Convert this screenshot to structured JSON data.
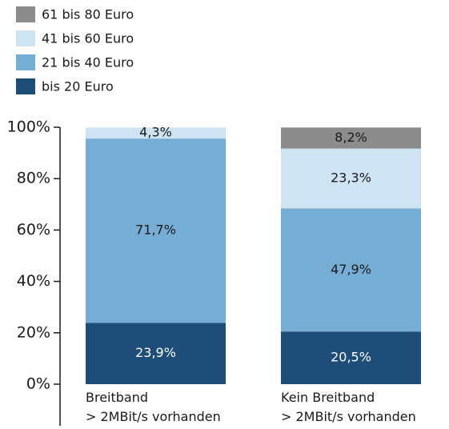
{
  "chart_data": {
    "type": "stacked-bar",
    "categories": [
      "Breitband\n> 2MBit/s vorhanden",
      "Kein Breitband\n> 2MBit/s vorhanden"
    ],
    "series": [
      {
        "name": "bis 20 Euro",
        "color": "#1f4d7a",
        "values": [
          23.9,
          20.5
        ],
        "value_labels": [
          "23,9%",
          "20,5%"
        ]
      },
      {
        "name": "21 bis 40 Euro",
        "color": "#75add4",
        "values": [
          71.7,
          47.9
        ],
        "value_labels": [
          "71,7%",
          "47,9%"
        ]
      },
      {
        "name": "41 bis 60 Euro",
        "color": "#cfe4f2",
        "values": [
          4.3,
          23.3
        ],
        "value_labels": [
          "4,3%",
          "23,3%"
        ]
      },
      {
        "name": "61 bis 80 Euro",
        "color": "#8c8c8c",
        "values": [
          null,
          8.2
        ],
        "value_labels": [
          null,
          "8,2%"
        ]
      }
    ],
    "ylim": [
      0,
      100
    ],
    "yticks": [
      {
        "value": 0,
        "label": "0%"
      },
      {
        "value": 20,
        "label": "20%"
      },
      {
        "value": 40,
        "label": "40%"
      },
      {
        "value": 60,
        "label": "60%"
      },
      {
        "value": 80,
        "label": "80%"
      },
      {
        "value": 100,
        "label": "100%"
      }
    ],
    "legend": "top-left"
  }
}
